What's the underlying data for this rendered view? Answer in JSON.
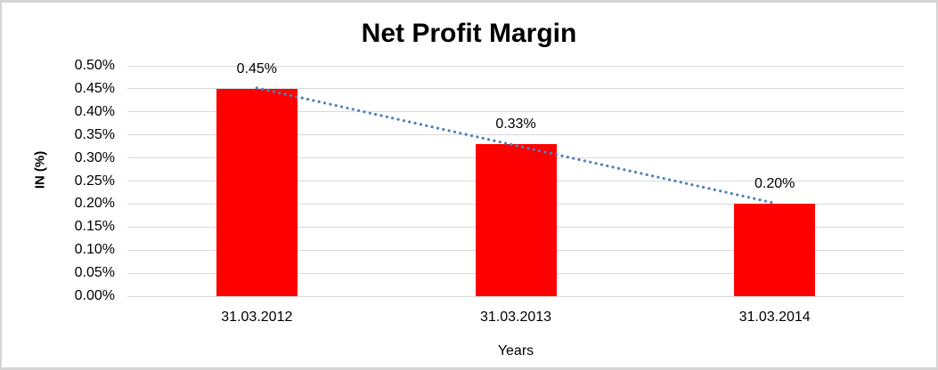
{
  "chart_data": {
    "type": "bar",
    "title": "Net Profit Margin",
    "xlabel": "Years",
    "ylabel": "IN (%)",
    "categories": [
      "31.03.2012",
      "31.03.2013",
      "31.03.2014"
    ],
    "values": [
      0.45,
      0.33,
      0.2
    ],
    "data_labels": [
      "0.45%",
      "0.33%",
      "0.20%"
    ],
    "series_name": "Net Profit Margin",
    "ylim": [
      0,
      0.5
    ],
    "ytick_step": 0.05,
    "yticks": [
      {
        "value": 0.5,
        "label": "0.50%"
      },
      {
        "value": 0.45,
        "label": "0.45%"
      },
      {
        "value": 0.4,
        "label": "0.40%"
      },
      {
        "value": 0.35,
        "label": "0.35%"
      },
      {
        "value": 0.3,
        "label": "0.30%"
      },
      {
        "value": 0.25,
        "label": "0.25%"
      },
      {
        "value": 0.2,
        "label": "0.20%"
      },
      {
        "value": 0.15,
        "label": "0.15%"
      },
      {
        "value": 0.1,
        "label": "0.10%"
      },
      {
        "value": 0.05,
        "label": "0.05%"
      },
      {
        "value": 0.0,
        "label": "0.00%"
      }
    ],
    "grid": true,
    "legend": "none",
    "trendline": {
      "type": "linear",
      "style": "dotted",
      "start_value": 0.452,
      "end_value": 0.202
    },
    "colors": {
      "bar": "#ff0000",
      "gridline": "#d9d9d9",
      "trendline": "#4f81bd",
      "text": "#000000",
      "frame_border": "#d5d5d5"
    }
  }
}
